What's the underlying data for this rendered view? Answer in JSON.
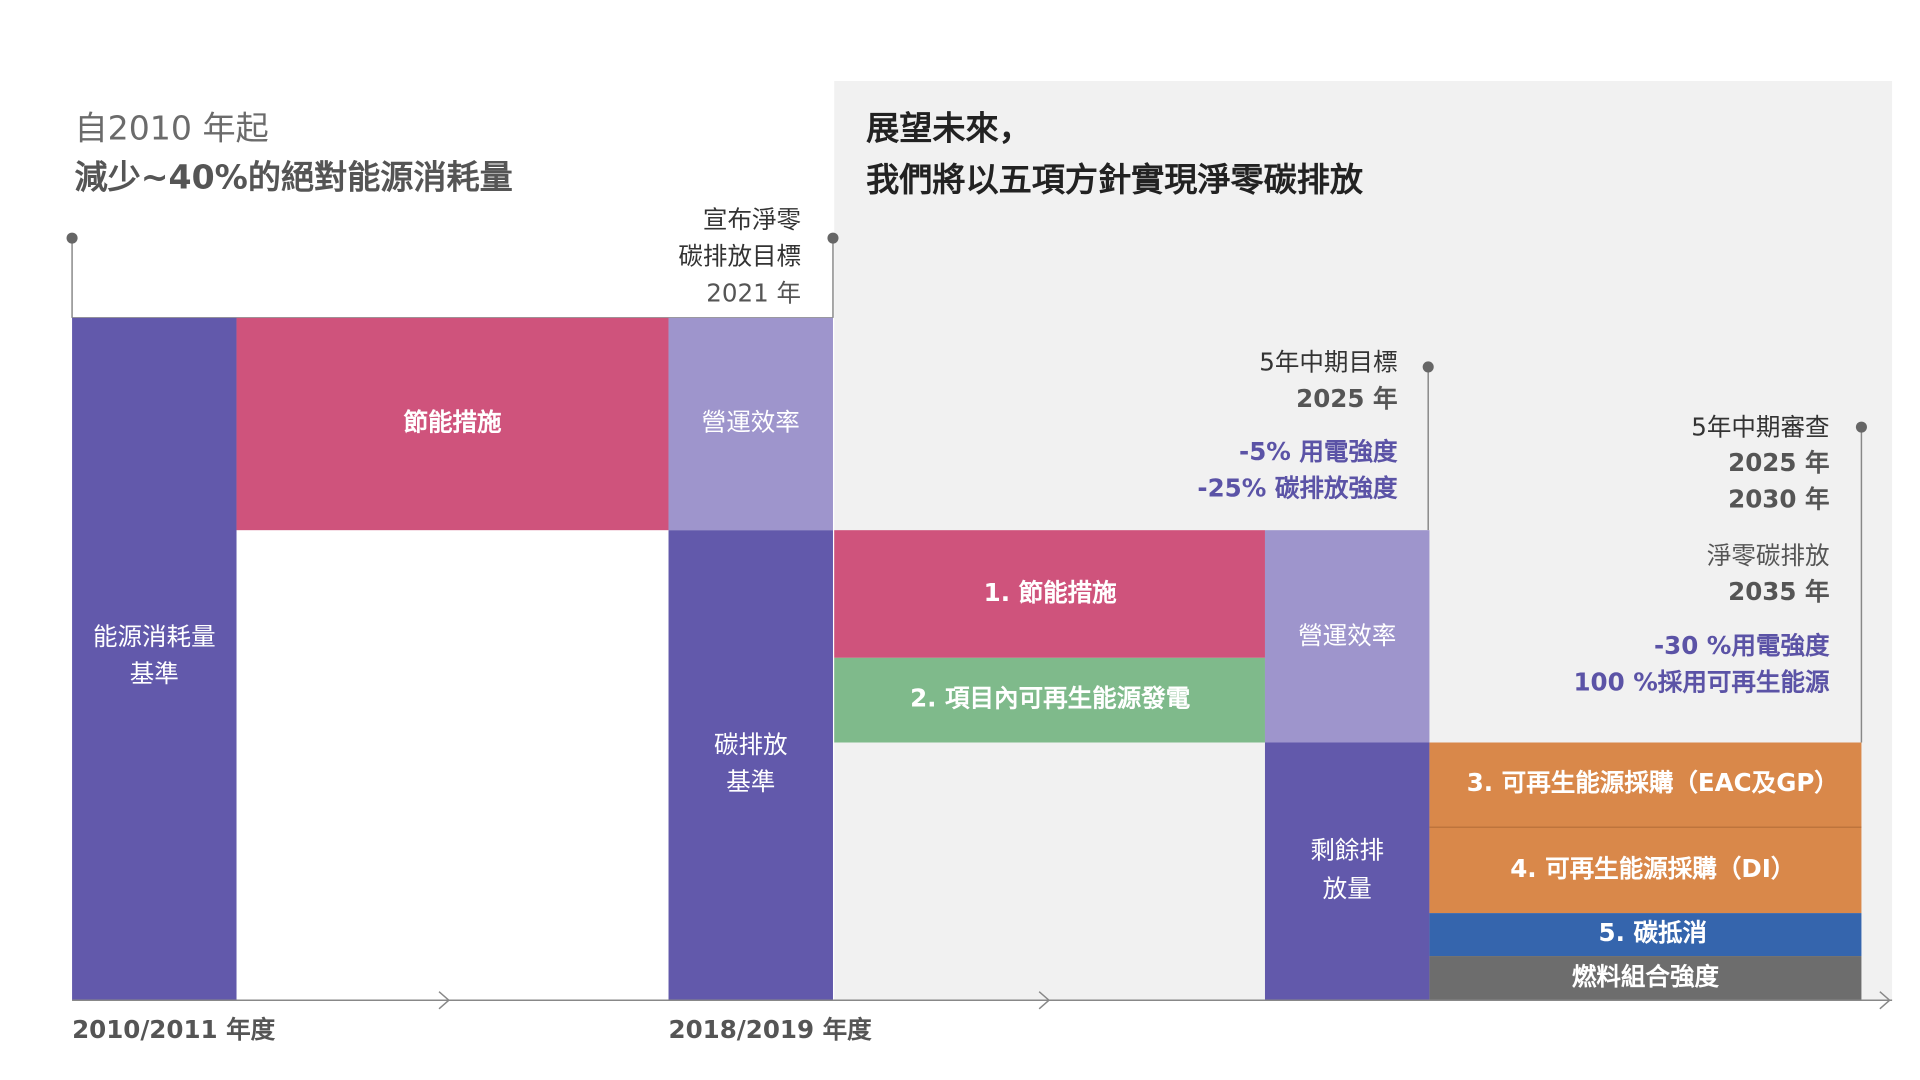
{
  "header_left": {
    "line1": "自2010 年起",
    "line2": "減少~40%的絕對能源消耗量"
  },
  "header_right": {
    "line1": "展望未來，",
    "line2": "我們將以五項方針實現淨零碳排放"
  },
  "milestones": [
    {
      "lines": [
        "宣布淨零",
        "碳排放目標",
        "2021 年"
      ]
    },
    {
      "lines": [
        "5年中期目標",
        "2025 年"
      ],
      "targets": [
        "-5% 用電強度",
        "-25% 碳排放強度"
      ]
    },
    {
      "lines": [
        "5年中期審查",
        "2025 年",
        "2030 年",
        "淨零碳排放",
        "2035 年"
      ],
      "targets": [
        "-30 %用電強度",
        "100 %採用可再生能源"
      ]
    }
  ],
  "blocks": [
    {
      "lines": [
        "能源消耗量",
        "基準"
      ]
    },
    {
      "lines": [
        "節能措施"
      ]
    },
    {
      "lines": [
        "營運效率"
      ]
    },
    {
      "lines": [
        "碳排放",
        "基準"
      ]
    },
    {
      "lines": [
        "1. 節能措施"
      ]
    },
    {
      "lines": [
        "2. 項目內可再生能源發電"
      ]
    },
    {
      "lines": [
        "營運效率"
      ]
    },
    {
      "lines": [
        "剩餘排",
        "放量"
      ]
    },
    {
      "lines": [
        "3. 可再生能源採購（EAC及GP）"
      ]
    },
    {
      "lines": [
        "4. 可再生能源採購（DI）"
      ]
    },
    {
      "lines": [
        "5. 碳抵消"
      ]
    },
    {
      "lines": [
        "燃料組合強度"
      ]
    }
  ],
  "axis_labels": [
    "2010/2011 年度",
    "2018/2019 年度"
  ]
}
